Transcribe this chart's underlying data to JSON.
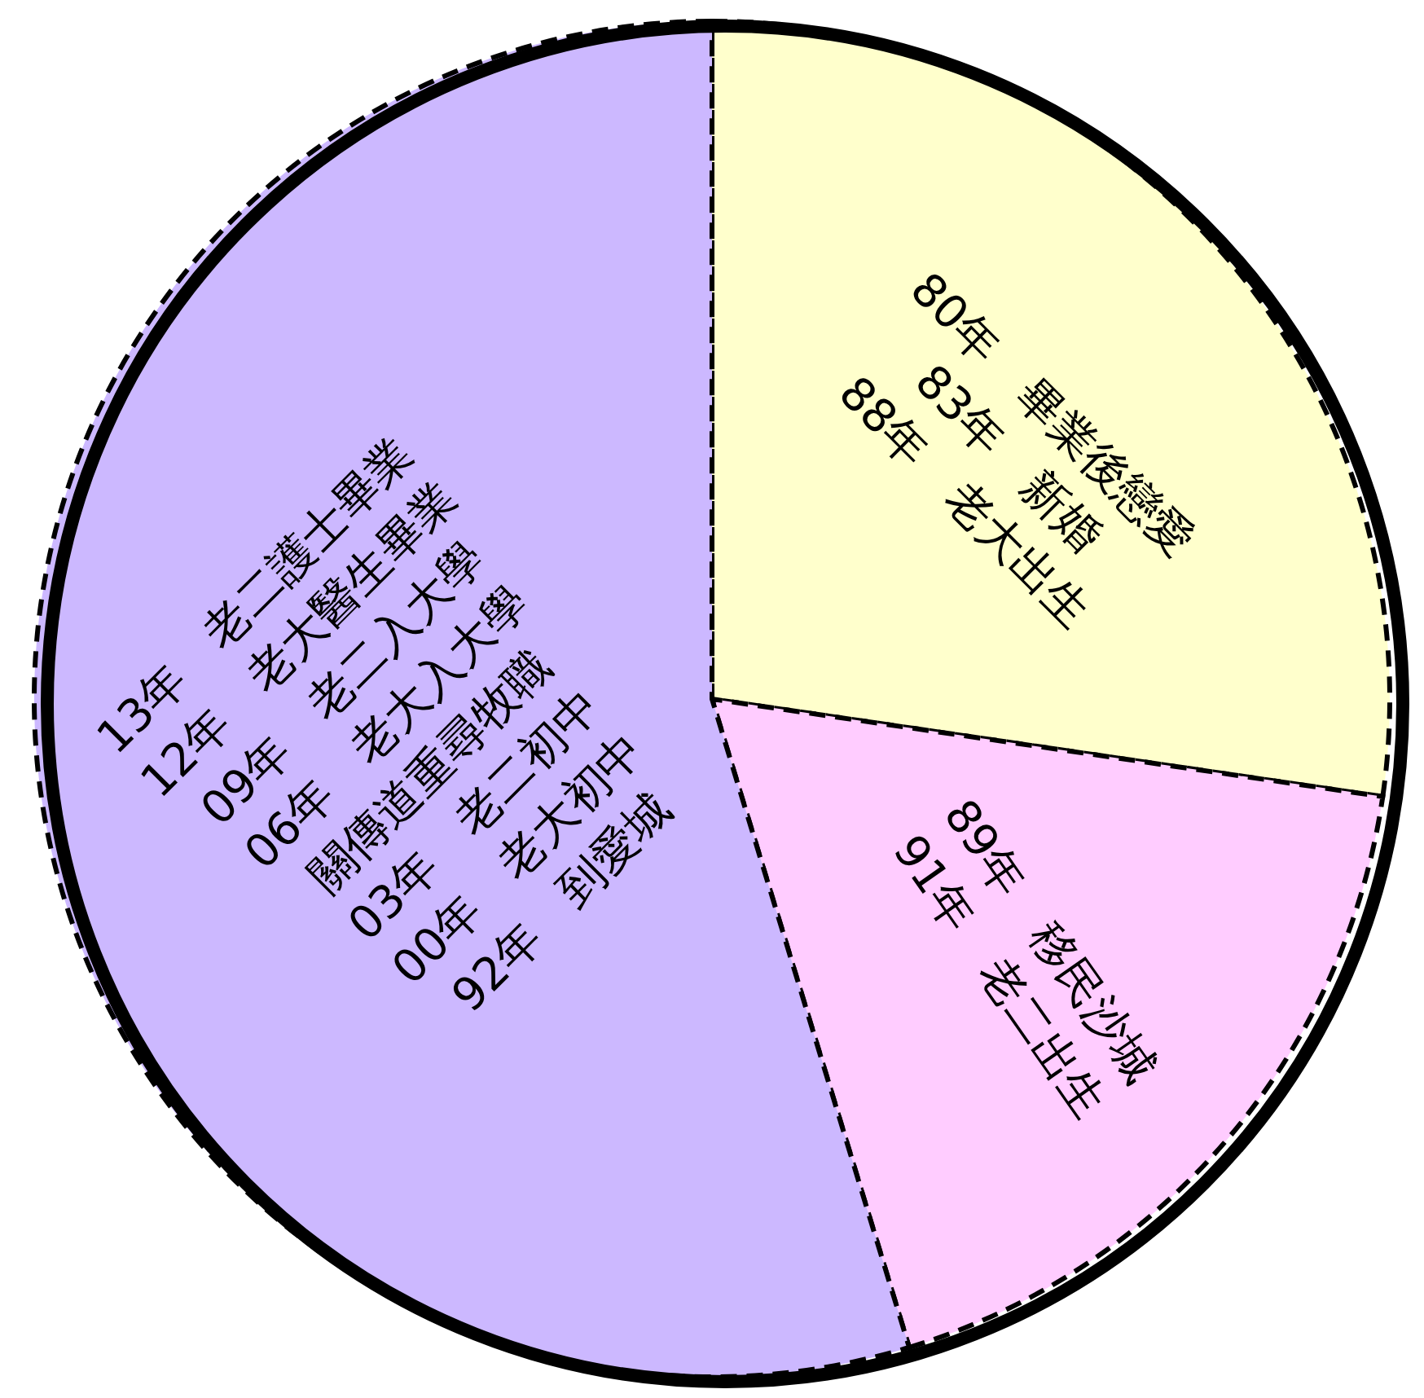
{
  "chart_data": {
    "type": "pie",
    "categories": [
      "80年　畢業後戀愛\n83年　新婚\n88年　老大出生",
      "89年　移民沙城\n91年　老二出生",
      "13年　老二護士畢業\n12年　老大醫生畢業\n09年　老二入大學\n06年　老大入大學\n關傳道重尋牧職\n03年　老二初中\n00年　老大初中\n92年　到愛城"
    ],
    "values": [
      27.3,
      18,
      54.7
    ],
    "colors": [
      "#ffffcc",
      "#ffccff",
      "#ccb8ff"
    ]
  }
}
